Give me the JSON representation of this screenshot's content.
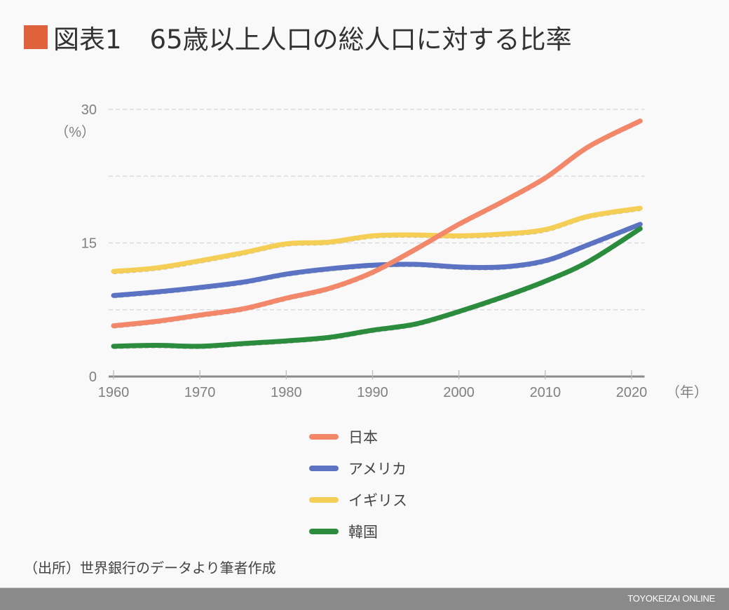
{
  "header": {
    "figure_label": "図表1",
    "title": "65歳以上人口の総人口に対する比率",
    "accent_color": "#e0623c"
  },
  "chart_data": {
    "type": "line",
    "title": "65歳以上人口の総人口に対する比率",
    "xlabel": "（年）",
    "ylabel": "（%）",
    "ylim": [
      0,
      30
    ],
    "xlim": [
      1960,
      2021.5
    ],
    "yticks": [
      0,
      15,
      30
    ],
    "ytick_labels": [
      "0",
      "15",
      "30"
    ],
    "ygrid": [
      7.5,
      15,
      22.5,
      30
    ],
    "xticks": [
      1960,
      1970,
      1980,
      1990,
      2000,
      2010,
      2020
    ],
    "xtick_labels": [
      "1960",
      "1970",
      "1980",
      "1990",
      "2000",
      "2010",
      "2020"
    ],
    "grid": true,
    "legend_position": "bottom",
    "x": [
      1960,
      1965,
      1970,
      1975,
      1980,
      1985,
      1990,
      1995,
      2000,
      2005,
      2010,
      2015,
      2021
    ],
    "series": [
      {
        "name": "日本",
        "color": "#f2876a",
        "values": [
          5.7,
          6.2,
          6.9,
          7.6,
          8.8,
          9.9,
          11.7,
          14.3,
          17.1,
          19.6,
          22.3,
          25.8,
          28.7
        ]
      },
      {
        "name": "アメリカ",
        "color": "#5b73c2",
        "values": [
          9.1,
          9.5,
          10.0,
          10.6,
          11.5,
          12.1,
          12.5,
          12.6,
          12.3,
          12.3,
          13.0,
          14.8,
          17.1
        ]
      },
      {
        "name": "イギリス",
        "color": "#f5ce55",
        "values": [
          11.8,
          12.2,
          13.0,
          13.9,
          14.9,
          15.1,
          15.8,
          15.9,
          15.8,
          16.0,
          16.5,
          18.0,
          18.9
        ]
      },
      {
        "name": "韓国",
        "color": "#2a8c3c",
        "values": [
          3.4,
          3.5,
          3.4,
          3.7,
          4.0,
          4.4,
          5.2,
          5.9,
          7.3,
          8.9,
          10.7,
          12.9,
          16.6
        ]
      }
    ]
  },
  "source": "（出所）世界銀行のデータより筆者作成",
  "footer": {
    "brand": "TOYOKEIZAI ONLINE"
  }
}
